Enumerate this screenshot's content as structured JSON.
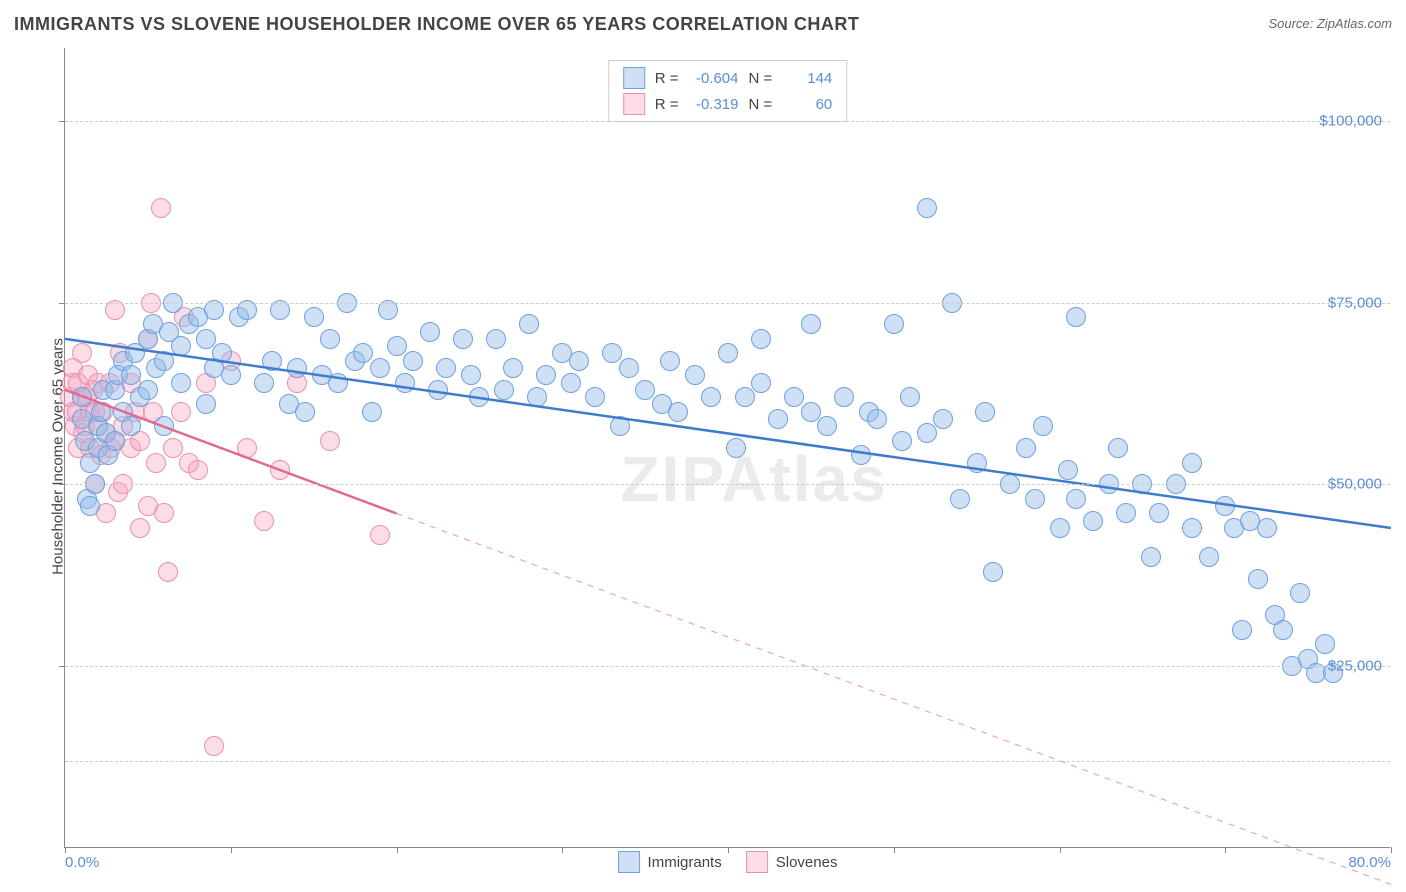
{
  "title": "IMMIGRANTS VS SLOVENE HOUSEHOLDER INCOME OVER 65 YEARS CORRELATION CHART",
  "source": "Source: ZipAtlas.com",
  "watermark": "ZIPAtlas",
  "y_axis_title": "Householder Income Over 65 years",
  "chart": {
    "type": "scatter",
    "background_color": "#ffffff",
    "grid_color": "#cccccc",
    "axis_color": "#888888",
    "xlim": [
      0,
      80
    ],
    "ylim": [
      0,
      110000
    ],
    "x_tick_step": 10,
    "x_labels": [
      {
        "value": 0,
        "text": "0.0%"
      },
      {
        "value": 80,
        "text": "80.0%"
      }
    ],
    "y_gridlines": [
      12000,
      25000,
      50000,
      75000,
      100000
    ],
    "y_labels": [
      {
        "value": 25000,
        "text": "$25,000"
      },
      {
        "value": 50000,
        "text": "$50,000"
      },
      {
        "value": 75000,
        "text": "$75,000"
      },
      {
        "value": 100000,
        "text": "$100,000"
      }
    ],
    "label_color": "#5b8dd6",
    "label_fontsize": 15,
    "marker_radius": 10,
    "marker_border_width": 1.5,
    "series": {
      "immigrants": {
        "label": "Immigrants",
        "fill_color": "rgba(148,187,233,0.45)",
        "stroke_color": "#6ea2de",
        "line_color": "#3f7ccf",
        "line_width": 2.5,
        "R": "-0.604",
        "N": "144",
        "trend": {
          "x1": 0,
          "y1": 70000,
          "x2": 80,
          "y2": 44000,
          "x_data_max": 80
        },
        "points": [
          [
            1,
            62000
          ],
          [
            1,
            59000
          ],
          [
            1.2,
            56000
          ],
          [
            1.3,
            48000
          ],
          [
            1.5,
            47000
          ],
          [
            1.5,
            53000
          ],
          [
            1.8,
            50000
          ],
          [
            2,
            55000
          ],
          [
            2,
            58000
          ],
          [
            2.2,
            60000
          ],
          [
            2.3,
            63000
          ],
          [
            2.5,
            57000
          ],
          [
            2.6,
            54000
          ],
          [
            3,
            56000
          ],
          [
            3,
            63000
          ],
          [
            3.2,
            65000
          ],
          [
            3.5,
            60000
          ],
          [
            3.5,
            67000
          ],
          [
            4,
            58000
          ],
          [
            4,
            65000
          ],
          [
            4.2,
            68000
          ],
          [
            4.5,
            62000
          ],
          [
            5,
            63000
          ],
          [
            5,
            70000
          ],
          [
            5.3,
            72000
          ],
          [
            5.5,
            66000
          ],
          [
            6,
            58000
          ],
          [
            6,
            67000
          ],
          [
            6.3,
            71000
          ],
          [
            6.5,
            75000
          ],
          [
            7,
            64000
          ],
          [
            7,
            69000
          ],
          [
            7.5,
            72000
          ],
          [
            8,
            73000
          ],
          [
            8.5,
            61000
          ],
          [
            8.5,
            70000
          ],
          [
            9,
            66000
          ],
          [
            9,
            74000
          ],
          [
            9.5,
            68000
          ],
          [
            10,
            65000
          ],
          [
            10.5,
            73000
          ],
          [
            11,
            74000
          ],
          [
            12,
            64000
          ],
          [
            12.5,
            67000
          ],
          [
            13,
            74000
          ],
          [
            13.5,
            61000
          ],
          [
            14,
            66000
          ],
          [
            14.5,
            60000
          ],
          [
            15,
            73000
          ],
          [
            15.5,
            65000
          ],
          [
            16,
            70000
          ],
          [
            16.5,
            64000
          ],
          [
            17,
            75000
          ],
          [
            17.5,
            67000
          ],
          [
            18,
            68000
          ],
          [
            18.5,
            60000
          ],
          [
            19,
            66000
          ],
          [
            19.5,
            74000
          ],
          [
            20,
            69000
          ],
          [
            20.5,
            64000
          ],
          [
            21,
            67000
          ],
          [
            22,
            71000
          ],
          [
            22.5,
            63000
          ],
          [
            23,
            66000
          ],
          [
            24,
            70000
          ],
          [
            24.5,
            65000
          ],
          [
            25,
            62000
          ],
          [
            26,
            70000
          ],
          [
            26.5,
            63000
          ],
          [
            27,
            66000
          ],
          [
            28,
            72000
          ],
          [
            28.5,
            62000
          ],
          [
            29,
            65000
          ],
          [
            30,
            68000
          ],
          [
            30.5,
            64000
          ],
          [
            31,
            67000
          ],
          [
            32,
            62000
          ],
          [
            33,
            68000
          ],
          [
            33.5,
            58000
          ],
          [
            34,
            66000
          ],
          [
            35,
            63000
          ],
          [
            36,
            61000
          ],
          [
            36.5,
            67000
          ],
          [
            37,
            60000
          ],
          [
            38,
            65000
          ],
          [
            39,
            62000
          ],
          [
            40,
            68000
          ],
          [
            40.5,
            55000
          ],
          [
            41,
            62000
          ],
          [
            42,
            64000
          ],
          [
            42,
            70000
          ],
          [
            43,
            59000
          ],
          [
            44,
            62000
          ],
          [
            45,
            60000
          ],
          [
            45,
            72000
          ],
          [
            46,
            58000
          ],
          [
            47,
            62000
          ],
          [
            48,
            54000
          ],
          [
            48.5,
            60000
          ],
          [
            49,
            59000
          ],
          [
            50,
            72000
          ],
          [
            50.5,
            56000
          ],
          [
            51,
            62000
          ],
          [
            52,
            57000
          ],
          [
            52,
            88000
          ],
          [
            53,
            59000
          ],
          [
            53.5,
            75000
          ],
          [
            54,
            48000
          ],
          [
            55,
            53000
          ],
          [
            55.5,
            60000
          ],
          [
            56,
            38000
          ],
          [
            57,
            50000
          ],
          [
            58,
            55000
          ],
          [
            58.5,
            48000
          ],
          [
            59,
            58000
          ],
          [
            60,
            44000
          ],
          [
            60.5,
            52000
          ],
          [
            61,
            48000
          ],
          [
            61,
            73000
          ],
          [
            62,
            45000
          ],
          [
            63,
            50000
          ],
          [
            63.5,
            55000
          ],
          [
            64,
            46000
          ],
          [
            65,
            50000
          ],
          [
            65.5,
            40000
          ],
          [
            66,
            46000
          ],
          [
            67,
            50000
          ],
          [
            68,
            44000
          ],
          [
            68,
            53000
          ],
          [
            69,
            40000
          ],
          [
            70,
            47000
          ],
          [
            70.5,
            44000
          ],
          [
            71,
            30000
          ],
          [
            71.5,
            45000
          ],
          [
            72,
            37000
          ],
          [
            72.5,
            44000
          ],
          [
            73,
            32000
          ],
          [
            73.5,
            30000
          ],
          [
            74,
            25000
          ],
          [
            74.5,
            35000
          ],
          [
            75,
            26000
          ],
          [
            75.5,
            24000
          ],
          [
            76,
            28000
          ],
          [
            76.5,
            24000
          ]
        ]
      },
      "slovenes": {
        "label": "Slovenes",
        "fill_color": "rgba(244,168,194,0.40)",
        "stroke_color": "#e892af",
        "line_color": "#e26a91",
        "line_width": 2.5,
        "R": "-0.319",
        "N": "60",
        "trend": {
          "x1": 0,
          "y1": 63000,
          "x2": 80,
          "y2": -5000,
          "x_data_max": 20
        },
        "points": [
          [
            0.3,
            62000
          ],
          [
            0.4,
            64000
          ],
          [
            0.5,
            60000
          ],
          [
            0.5,
            66000
          ],
          [
            0.6,
            58000
          ],
          [
            0.7,
            60000
          ],
          [
            0.8,
            64000
          ],
          [
            0.8,
            55000
          ],
          [
            1,
            62000
          ],
          [
            1,
            68000
          ],
          [
            1.1,
            57000
          ],
          [
            1.2,
            58000
          ],
          [
            1.3,
            62000
          ],
          [
            1.4,
            65000
          ],
          [
            1.5,
            60000
          ],
          [
            1.5,
            55000
          ],
          [
            1.7,
            63000
          ],
          [
            1.8,
            50000
          ],
          [
            1.8,
            60000
          ],
          [
            2,
            58000
          ],
          [
            2,
            64000
          ],
          [
            2.2,
            54000
          ],
          [
            2.3,
            60000
          ],
          [
            2.5,
            57000
          ],
          [
            2.5,
            46000
          ],
          [
            2.7,
            64000
          ],
          [
            2.8,
            55000
          ],
          [
            3,
            56000
          ],
          [
            3,
            74000
          ],
          [
            3.2,
            49000
          ],
          [
            3.3,
            68000
          ],
          [
            3.5,
            58000
          ],
          [
            3.5,
            50000
          ],
          [
            4,
            55000
          ],
          [
            4,
            64000
          ],
          [
            4.2,
            60000
          ],
          [
            4.5,
            44000
          ],
          [
            4.5,
            56000
          ],
          [
            5,
            47000
          ],
          [
            5,
            70000
          ],
          [
            5.2,
            75000
          ],
          [
            5.3,
            60000
          ],
          [
            5.5,
            53000
          ],
          [
            5.8,
            88000
          ],
          [
            6,
            46000
          ],
          [
            6.2,
            38000
          ],
          [
            6.5,
            55000
          ],
          [
            7,
            60000
          ],
          [
            7.2,
            73000
          ],
          [
            7.5,
            53000
          ],
          [
            8,
            52000
          ],
          [
            8.5,
            64000
          ],
          [
            9,
            14000
          ],
          [
            10,
            67000
          ],
          [
            11,
            55000
          ],
          [
            12,
            45000
          ],
          [
            13,
            52000
          ],
          [
            14,
            64000
          ],
          [
            16,
            56000
          ],
          [
            19,
            43000
          ]
        ]
      }
    }
  },
  "stat_legend": {
    "R_label": "R =",
    "N_label": "N ="
  }
}
